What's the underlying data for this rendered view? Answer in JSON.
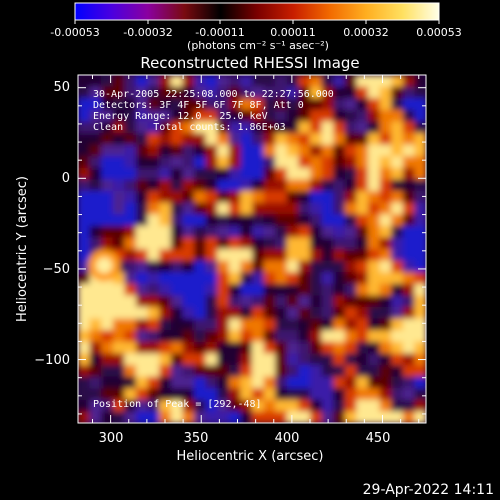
{
  "colorbar": {
    "ticks": [
      "-0.00053",
      "-0.00032",
      "-0.00011",
      "0.00011",
      "0.00032",
      "0.00053"
    ],
    "unit_label": "(photons cm⁻² s⁻¹ asec⁻²)",
    "gradient": [
      "#0000ff",
      "#4a00e0",
      "#8a00a0",
      "#7a0a10",
      "#000000",
      "#7a0000",
      "#c81e00",
      "#f26a00",
      "#ffae20",
      "#ffe060",
      "#ffffe8"
    ]
  },
  "annotations": {
    "time_range": "30-Apr-2005 22:25:08.000 to 22:27:56.000",
    "detectors": "Detectors: 3F 4F 5F 6F 7F 8F, Att 0",
    "energy": "Energy Range: 12.0 - 25.0 keV",
    "clean": "Clean     Total counts: 1.86E+03",
    "peak": "Position of Peak = [292,-48]"
  },
  "footer": {
    "timestamp": "29-Apr-2022 14:11"
  },
  "chart_data": {
    "type": "heatmap",
    "title": "Reconstructed RHESSI Image",
    "xlabel": "Heliocentric X (arcsec)",
    "ylabel": "Heliocentric Y (arcsec)",
    "xlim": [
      282,
      474
    ],
    "ylim": [
      -135,
      57
    ],
    "x_ticks": [
      300,
      350,
      400,
      450
    ],
    "y_ticks": [
      50,
      0,
      -50,
      -100
    ],
    "x_tick_labels": [
      "300",
      "350",
      "400",
      "450"
    ],
    "y_tick_labels": [
      "50",
      "0",
      "−50",
      "−100"
    ],
    "zlim": [
      -0.00053,
      0.00053
    ],
    "peak": [
      292,
      -48
    ],
    "grid": false
  }
}
